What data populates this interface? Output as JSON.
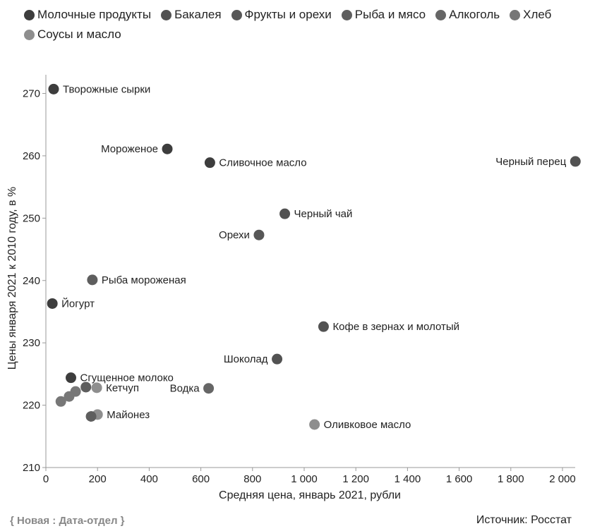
{
  "legend": [
    {
      "name": "Молочные продукты",
      "color": "#3d3d3d"
    },
    {
      "name": "Бакалея",
      "color": "#525252"
    },
    {
      "name": "Фрукты и орехи",
      "color": "#575757"
    },
    {
      "name": "Рыба и мясо",
      "color": "#5e5e5e"
    },
    {
      "name": "Алкоголь",
      "color": "#666666"
    },
    {
      "name": "Хлеб",
      "color": "#777777"
    },
    {
      "name": "Соусы и масло",
      "color": "#8e8e8e"
    }
  ],
  "footer": {
    "brand": "{ Новая : Дата-отдел }",
    "source": "Источник: Росстат"
  },
  "chart_data": {
    "type": "scatter",
    "xlabel": "Средняя цена, январь 2021, рубли",
    "ylabel": "Цены января 2021 к 2010 году, в %",
    "xlim": [
      0,
      2000
    ],
    "ylim": [
      210,
      273
    ],
    "xticks": [
      0,
      200,
      400,
      600,
      800,
      1000,
      1200,
      1400,
      1600,
      1800,
      2000
    ],
    "xtick_labels": [
      "0",
      "200",
      "400",
      "600",
      "800",
      "1 000",
      "1 200",
      "1 400",
      "1 600",
      "1 800",
      "2 000"
    ],
    "yticks": [
      210,
      220,
      230,
      240,
      250,
      260,
      270
    ],
    "ytick_labels": [
      "210",
      "220",
      "230",
      "240",
      "250",
      "260",
      "270"
    ],
    "grid": false,
    "legend_position": "top",
    "points": [
      {
        "label": "Творожные сырки",
        "x": 30,
        "y": 270.7,
        "category": "Молочные продукты",
        "label_side": "right"
      },
      {
        "label": "Мороженое",
        "x": 470,
        "y": 261.1,
        "category": "Молочные продукты",
        "label_side": "left"
      },
      {
        "label": "Сливочное масло",
        "x": 635,
        "y": 258.9,
        "category": "Молочные продукты",
        "label_side": "right"
      },
      {
        "label": "Черный перец",
        "x": 2050,
        "y": 259.1,
        "category": "Бакалея",
        "label_side": "left"
      },
      {
        "label": "Черный чай",
        "x": 925,
        "y": 250.7,
        "category": "Бакалея",
        "label_side": "right"
      },
      {
        "label": "Орехи",
        "x": 825,
        "y": 247.3,
        "category": "Фрукты и орехи",
        "label_side": "left"
      },
      {
        "label": "Рыба мороженая",
        "x": 180,
        "y": 240.1,
        "category": "Рыба и мясо",
        "label_side": "right"
      },
      {
        "label": "Йогурт",
        "x": 25,
        "y": 236.3,
        "category": "Молочные продукты",
        "label_side": "right"
      },
      {
        "label": "Кофе в зернах и молотый",
        "x": 1075,
        "y": 232.6,
        "category": "Бакалея",
        "label_side": "right"
      },
      {
        "label": "Шоколад",
        "x": 895,
        "y": 227.4,
        "category": "Бакалея",
        "label_side": "left"
      },
      {
        "label": "Сгущенное молоко",
        "x": 97,
        "y": 224.4,
        "category": "Молочные продукты",
        "label_side": "right"
      },
      {
        "label": "Водка",
        "x": 630,
        "y": 222.7,
        "category": "Алкоголь",
        "label_side": "left"
      },
      {
        "label": "Кетчуп",
        "x": 197,
        "y": 222.8,
        "category": "Соусы и масло",
        "label_side": "right"
      },
      {
        "label": "",
        "x": 155,
        "y": 222.9,
        "category": "Рыба и мясо"
      },
      {
        "label": "",
        "x": 115,
        "y": 222.2,
        "category": "Хлеб"
      },
      {
        "label": "",
        "x": 90,
        "y": 221.4,
        "category": "Хлеб"
      },
      {
        "label": "",
        "x": 58,
        "y": 220.6,
        "category": "Хлеб"
      },
      {
        "label": "Майонез",
        "x": 200,
        "y": 218.5,
        "category": "Соусы и масло",
        "label_side": "right"
      },
      {
        "label": "",
        "x": 175,
        "y": 218.2,
        "category": "Рыба и мясо"
      },
      {
        "label": "Оливковое масло",
        "x": 1040,
        "y": 216.9,
        "category": "Соусы и масло",
        "label_side": "right"
      }
    ]
  }
}
